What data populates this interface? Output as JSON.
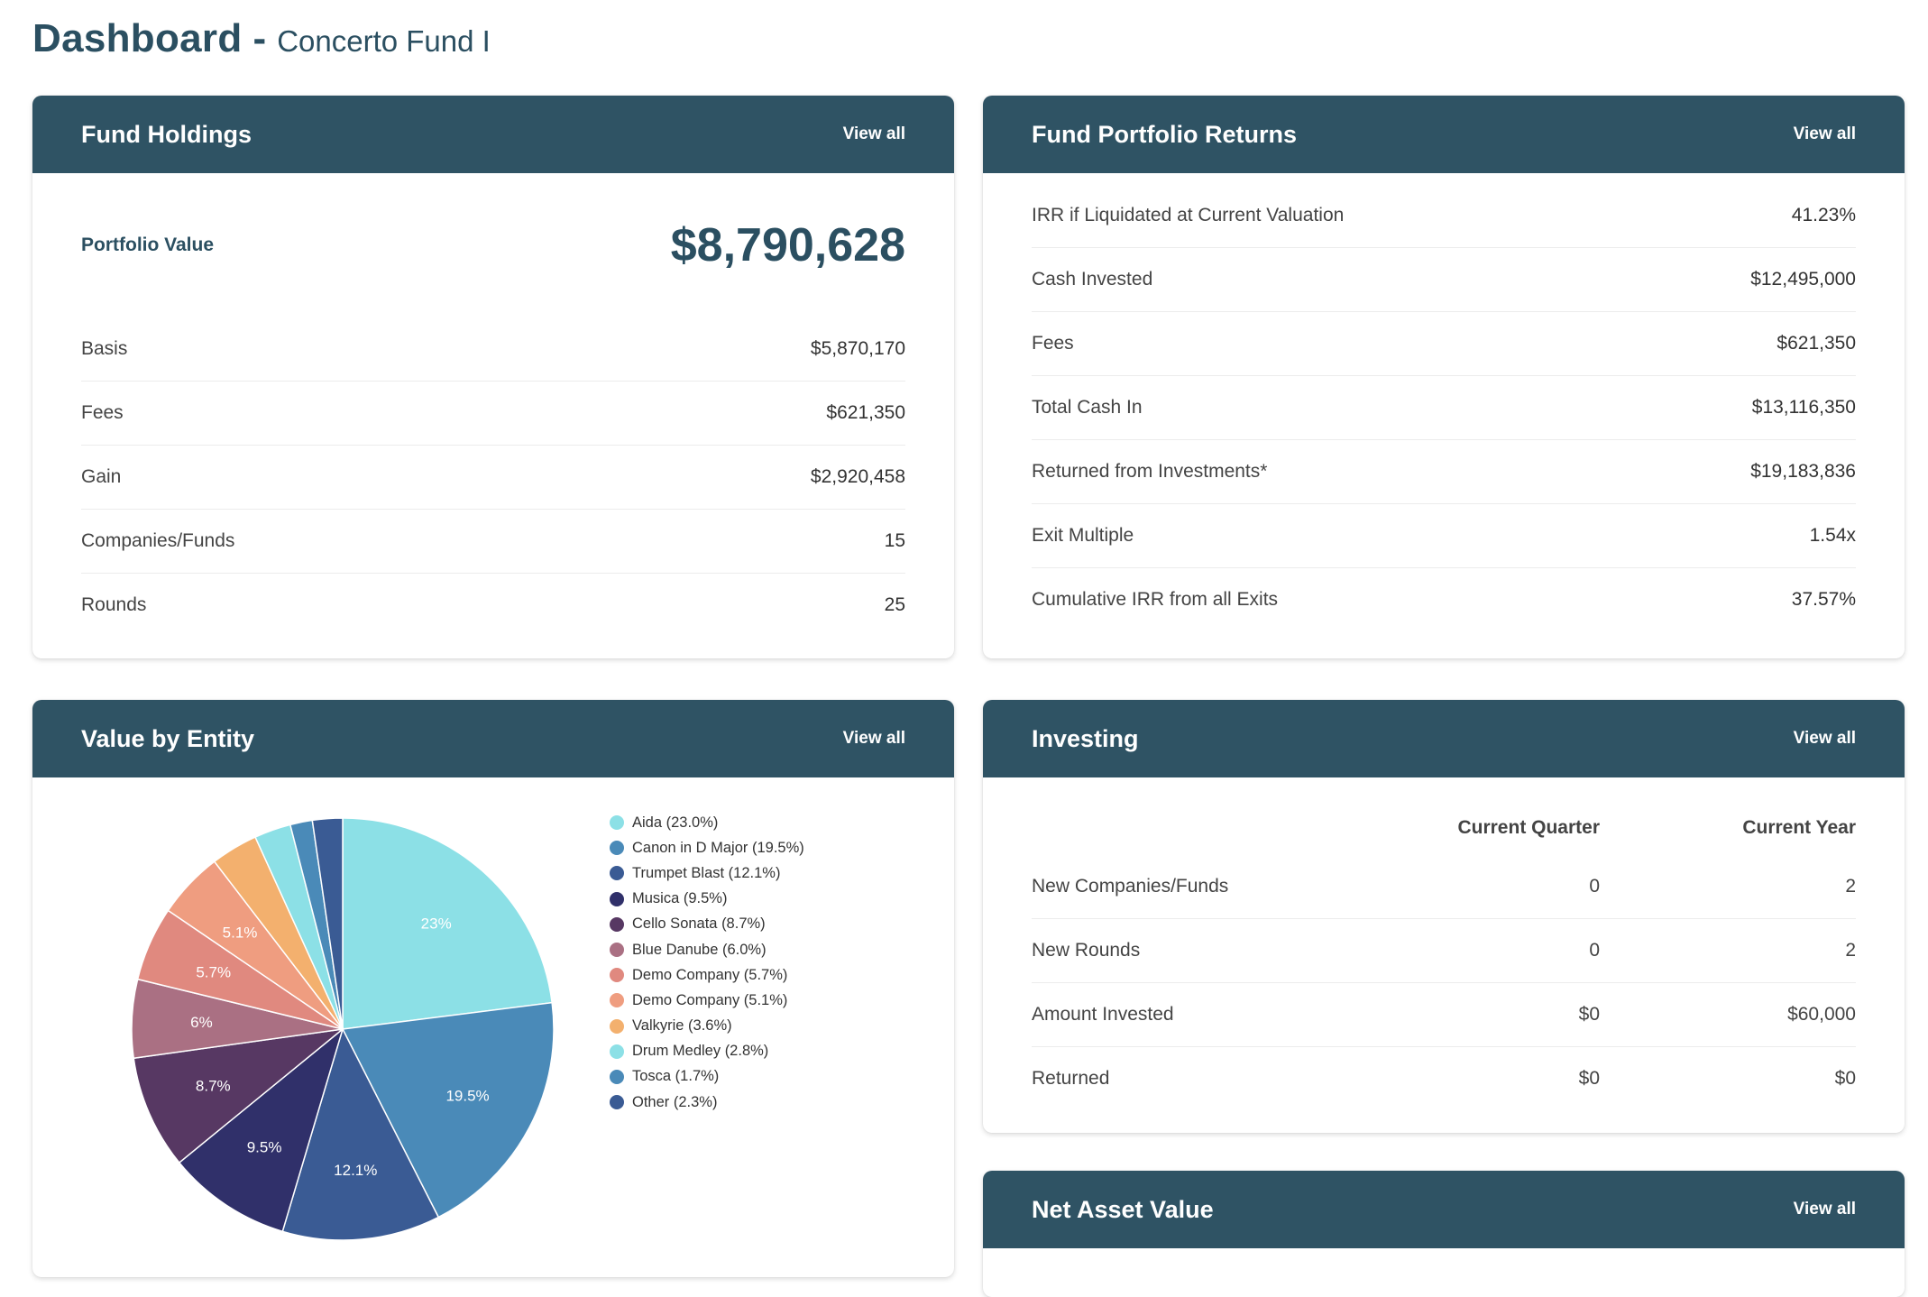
{
  "page": {
    "title": "Dashboard",
    "separator": "-",
    "subtitle": "Concerto Fund I"
  },
  "holdings": {
    "title": "Fund Holdings",
    "view_all": "View all",
    "portfolio_value_label": "Portfolio Value",
    "portfolio_value": "$8,790,628",
    "rows": [
      {
        "label": "Basis",
        "value": "$5,870,170"
      },
      {
        "label": "Fees",
        "value": "$621,350"
      },
      {
        "label": "Gain",
        "value": "$2,920,458"
      },
      {
        "label": "Companies/Funds",
        "value": "15"
      },
      {
        "label": "Rounds",
        "value": "25"
      }
    ]
  },
  "returns": {
    "title": "Fund Portfolio Returns",
    "view_all": "View all",
    "rows": [
      {
        "label": "IRR if Liquidated at Current Valuation",
        "value": "41.23%"
      },
      {
        "label": "Cash Invested",
        "value": "$12,495,000"
      },
      {
        "label": "Fees",
        "value": "$621,350"
      },
      {
        "label": "Total Cash In",
        "value": "$13,116,350"
      },
      {
        "label": "Returned from Investments*",
        "value": "$19,183,836"
      },
      {
        "label": "Exit Multiple",
        "value": "1.54x"
      },
      {
        "label": "Cumulative IRR from all Exits",
        "value": "37.57%"
      }
    ]
  },
  "entity": {
    "title": "Value by Entity",
    "view_all": "View all"
  },
  "investing": {
    "title": "Investing",
    "view_all": "View all",
    "col_quarter": "Current Quarter",
    "col_year": "Current Year",
    "rows": [
      {
        "label": "New Companies/Funds",
        "quarter": "0",
        "year": "2"
      },
      {
        "label": "New Rounds",
        "quarter": "0",
        "year": "2"
      },
      {
        "label": "Amount Invested",
        "quarter": "$0",
        "year": "$60,000"
      },
      {
        "label": "Returned",
        "quarter": "$0",
        "year": "$0"
      }
    ]
  },
  "nav": {
    "title": "Net Asset Value",
    "view_all": "View all"
  },
  "chart_data": {
    "type": "pie",
    "categories": [
      "Aida",
      "Canon in D Major",
      "Trumpet Blast",
      "Musica",
      "Cello Sonata",
      "Blue Danube",
      "Demo Company",
      "Demo Company",
      "Valkyrie",
      "Drum Medley",
      "Tosca",
      "Other"
    ],
    "values": [
      23.0,
      19.5,
      12.1,
      9.5,
      8.7,
      6.0,
      5.7,
      5.1,
      3.6,
      2.8,
      1.7,
      2.3
    ],
    "legend_labels": [
      "Aida (23.0%)",
      "Canon in D Major (19.5%)",
      "Trumpet Blast (12.1%)",
      "Musica (9.5%)",
      "Cello Sonata (8.7%)",
      "Blue Danube (6.0%)",
      "Demo Company (5.7%)",
      "Demo Company (5.1%)",
      "Valkyrie (3.6%)",
      "Drum Medley (2.8%)",
      "Tosca (1.7%)",
      "Other (2.3%)"
    ],
    "slice_labels": [
      "23%",
      "19.5%",
      "12.1%",
      "9.5%",
      "8.7%",
      "6%",
      "5.7%",
      "5.1%",
      "",
      "",
      "",
      ""
    ],
    "colors": [
      "#8ce0e6",
      "#4a8ab8",
      "#3a5b94",
      "#30306a",
      "#573863",
      "#aa7083",
      "#e0897f",
      "#ef9d80",
      "#f3b06e",
      "#8ce0e6",
      "#4a8ab8",
      "#3a5b94"
    ],
    "legend_position": "right"
  }
}
